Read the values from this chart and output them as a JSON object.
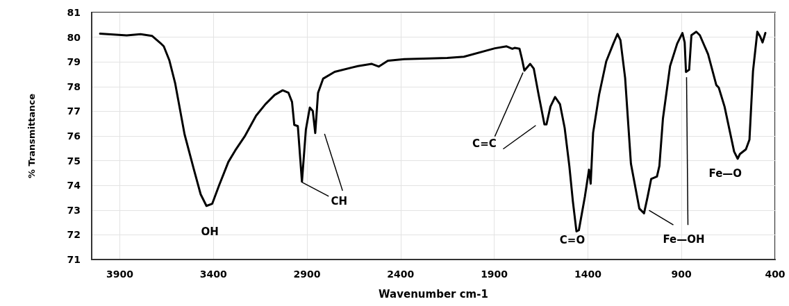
{
  "chart_data": {
    "type": "line",
    "xlabel": "Wavenumber cm-1",
    "ylabel": "% Transmittance",
    "xlim": [
      4050,
      400
    ],
    "xticks": [
      3900,
      3400,
      2900,
      2400,
      1900,
      1400,
      900,
      400
    ],
    "ylim": [
      71,
      81
    ],
    "yticks": [
      71,
      72,
      73,
      74,
      75,
      76,
      77,
      78,
      79,
      80,
      81
    ],
    "grid": true,
    "marker": "none",
    "line_style": "solid",
    "x": [
      4005,
      3863,
      3789,
      3727,
      3684,
      3665,
      3635,
      3604,
      3554,
      3505,
      3468,
      3437,
      3406,
      3369,
      3320,
      3283,
      3233,
      3172,
      3122,
      3073,
      3030,
      2999,
      2980,
      2968,
      2949,
      2927,
      2906,
      2885,
      2869,
      2856,
      2841,
      2814,
      2752,
      2628,
      2554,
      2517,
      2468,
      2381,
      2246,
      2151,
      2062,
      1897,
      1834,
      1803,
      1790,
      1765,
      1752,
      1739,
      1708,
      1689,
      1663,
      1632,
      1621,
      1600,
      1575,
      1549,
      1524,
      1499,
      1480,
      1461,
      1448,
      1416,
      1394,
      1385,
      1372,
      1340,
      1302,
      1264,
      1242,
      1226,
      1201,
      1170,
      1125,
      1100,
      1081,
      1062,
      1031,
      1018,
      999,
      961,
      923,
      895,
      883,
      876,
      859,
      847,
      821,
      802,
      758,
      714,
      701,
      670,
      619,
      600,
      588,
      556,
      537,
      518,
      495,
      480,
      467,
      452
    ],
    "series": [
      {
        "color": "#000000",
        "values": [
          80.14,
          80.07,
          80.12,
          80.05,
          79.77,
          79.63,
          79.06,
          78.13,
          76.07,
          74.67,
          73.64,
          73.17,
          73.26,
          74.01,
          74.95,
          75.42,
          75.98,
          76.82,
          77.29,
          77.66,
          77.85,
          77.75,
          77.38,
          76.45,
          76.4,
          74.15,
          76.26,
          77.15,
          77.01,
          76.12,
          77.75,
          78.32,
          78.6,
          78.83,
          78.92,
          78.81,
          79.05,
          79.11,
          79.14,
          79.16,
          79.21,
          79.55,
          79.63,
          79.53,
          79.57,
          79.53,
          79.12,
          78.65,
          78.92,
          78.73,
          77.67,
          76.47,
          76.47,
          77.19,
          77.58,
          77.29,
          76.33,
          74.79,
          73.35,
          72.14,
          72.19,
          73.54,
          74.64,
          74.07,
          76.13,
          77.67,
          79.02,
          79.74,
          80.13,
          79.88,
          78.35,
          74.88,
          73.06,
          72.87,
          73.54,
          74.26,
          74.36,
          74.79,
          76.71,
          78.83,
          79.74,
          80.17,
          79.79,
          78.59,
          78.68,
          80.08,
          80.22,
          80.08,
          79.31,
          78.06,
          77.96,
          77.19,
          75.37,
          75.08,
          75.27,
          75.46,
          75.85,
          78.63,
          80.22,
          80.03,
          79.79,
          80.17
        ]
      }
    ],
    "annotations": [
      {
        "text": "OH",
        "x": 3437,
        "y": 73.17
      },
      {
        "text": "CH",
        "x": 2927,
        "y": 74.15
      },
      {
        "text": "C=C",
        "x": 1739,
        "y": 78.65
      },
      {
        "text": "C=O",
        "x": 1461,
        "y": 72.14
      },
      {
        "text": "Fe—OH",
        "x": 1100,
        "y": 72.87
      },
      {
        "text": "Fe—O",
        "x": 600,
        "y": 75.08
      }
    ]
  }
}
